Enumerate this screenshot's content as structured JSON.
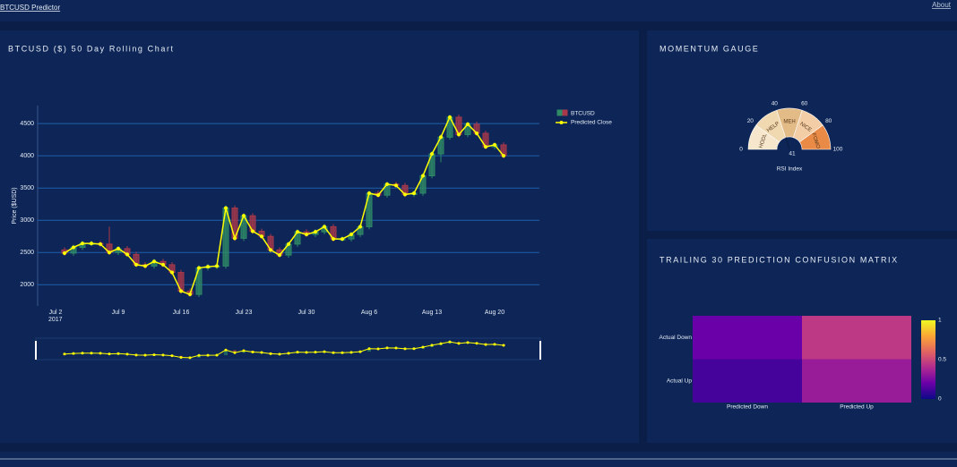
{
  "header": {
    "title": "BTCUSD Predictor",
    "link": "About"
  },
  "chart_data": [
    {
      "type": "candlestick",
      "title": "BTCUSD ($) 50 Day Rolling Chart",
      "name": "BTCUSD",
      "increasing_color": "#2f8a66",
      "decreasing_color": "#a8384a",
      "x": [
        "2017-07-03",
        "2017-07-04",
        "2017-07-05",
        "2017-07-06",
        "2017-07-07",
        "2017-07-08",
        "2017-07-09",
        "2017-07-10",
        "2017-07-11",
        "2017-07-12",
        "2017-07-13",
        "2017-07-14",
        "2017-07-15",
        "2017-07-16",
        "2017-07-17",
        "2017-07-18",
        "2017-07-19",
        "2017-07-20",
        "2017-07-21",
        "2017-07-22",
        "2017-07-23",
        "2017-07-24",
        "2017-07-25",
        "2017-07-26",
        "2017-07-27",
        "2017-07-28",
        "2017-07-29",
        "2017-07-30",
        "2017-07-31",
        "2017-08-01",
        "2017-08-02",
        "2017-08-03",
        "2017-08-04",
        "2017-08-05",
        "2017-08-06",
        "2017-08-07",
        "2017-08-08",
        "2017-08-09",
        "2017-08-10",
        "2017-08-11",
        "2017-08-12",
        "2017-08-13",
        "2017-08-14",
        "2017-08-15",
        "2017-08-16",
        "2017-08-17",
        "2017-08-18",
        "2017-08-19",
        "2017-08-20",
        "2017-08-21"
      ],
      "open": [
        2540,
        2490,
        2580,
        2640,
        2640,
        2630,
        2500,
        2560,
        2470,
        2310,
        2290,
        2360,
        2310,
        2190,
        1900,
        1850,
        2260,
        2280,
        2290,
        3190,
        2720,
        3070,
        2830,
        2750,
        2540,
        2460,
        2630,
        2820,
        2780,
        2820,
        2900,
        2710,
        2710,
        2780,
        2900,
        3420,
        3390,
        3560,
        3540,
        3400,
        3420,
        3690,
        4030,
        4290,
        4600,
        4330,
        4490,
        4350,
        4140,
        4170
      ],
      "high": [
        2580,
        2620,
        2680,
        2680,
        2680,
        2900,
        2600,
        2600,
        2510,
        2350,
        2400,
        2400,
        2350,
        2230,
        1940,
        2300,
        2320,
        2330,
        3230,
        3230,
        3110,
        3110,
        2870,
        2790,
        2580,
        2670,
        2860,
        2860,
        2860,
        2940,
        2940,
        2750,
        2820,
        2940,
        3460,
        3460,
        3600,
        3600,
        3580,
        3460,
        3730,
        4070,
        4330,
        4640,
        4640,
        4530,
        4530,
        4390,
        4210,
        4210
      ],
      "low": [
        2450,
        2450,
        2540,
        2600,
        2590,
        2460,
        2460,
        2430,
        2270,
        2250,
        2250,
        2270,
        2150,
        1860,
        1810,
        1810,
        2220,
        2240,
        2250,
        2680,
        2680,
        2790,
        2710,
        2500,
        2420,
        2420,
        2590,
        2740,
        2740,
        2780,
        2670,
        2670,
        2670,
        2740,
        2860,
        3350,
        3350,
        3500,
        3360,
        3360,
        3380,
        3650,
        3900,
        4250,
        4290,
        4290,
        4310,
        4100,
        4100,
        3960
      ],
      "close": [
        2490,
        2580,
        2640,
        2640,
        2630,
        2500,
        2560,
        2470,
        2310,
        2290,
        2360,
        2310,
        2190,
        1900,
        1850,
        2260,
        2280,
        2290,
        3190,
        2720,
        3070,
        2830,
        2750,
        2540,
        2460,
        2630,
        2820,
        2780,
        2820,
        2900,
        2710,
        2710,
        2780,
        2900,
        3420,
        3390,
        3560,
        3540,
        3400,
        3420,
        3690,
        4030,
        4290,
        4600,
        4330,
        4490,
        4350,
        4140,
        4170,
        4000
      ],
      "series": [
        {
          "name": "Predicted Close",
          "color": "#ffff00",
          "values": [
            2490,
            2580,
            2640,
            2640,
            2630,
            2500,
            2560,
            2470,
            2310,
            2290,
            2360,
            2310,
            2190,
            1900,
            1850,
            2260,
            2280,
            2290,
            3190,
            2720,
            3070,
            2830,
            2750,
            2540,
            2460,
            2630,
            2820,
            2780,
            2820,
            2900,
            2710,
            2710,
            2780,
            2900,
            3420,
            3390,
            3560,
            3540,
            3400,
            3420,
            3690,
            4030,
            4290,
            4600,
            4330,
            4490,
            4350,
            4140,
            4170,
            4000
          ]
        }
      ],
      "ylabel": "Price ($USD)",
      "xlim": [
        "2017-06-30",
        "2017-08-25"
      ],
      "ylim": [
        1670,
        4780
      ],
      "xticks": [
        {
          "value": "2017-07-02",
          "label": "Jul 2"
        },
        {
          "value": "2017-07-09",
          "label": "Jul 9"
        },
        {
          "value": "2017-07-16",
          "label": "Jul 16"
        },
        {
          "value": "2017-07-23",
          "label": "Jul 23"
        },
        {
          "value": "2017-07-30",
          "label": "Jul 30"
        },
        {
          "value": "2017-08-06",
          "label": "Aug 6"
        },
        {
          "value": "2017-08-13",
          "label": "Aug 13"
        },
        {
          "value": "2017-08-20",
          "label": "Aug 20"
        }
      ],
      "xtick_year": "2017",
      "yticks": [
        2000,
        2500,
        3000,
        3500,
        4000,
        4500
      ],
      "grid": true,
      "rangeslider": true
    },
    {
      "type": "gauge",
      "title": "MOMENTUM GAUGE",
      "value": 41,
      "range": [
        0,
        100
      ],
      "ticks": [
        0,
        20,
        40,
        60,
        80,
        100
      ],
      "axis_label": "RSI Index",
      "bands": [
        {
          "name": "HODL",
          "range": [
            0,
            20
          ],
          "color": "#f5e6cc"
        },
        {
          "name": "HELP",
          "range": [
            20,
            40
          ],
          "color": "#f0d8b0"
        },
        {
          "name": "MEH",
          "range": [
            40,
            60
          ],
          "color": "#e3bb87"
        },
        {
          "name": "NICE",
          "range": [
            60,
            80
          ],
          "color": "#f2cda6"
        },
        {
          "name": "FOMO",
          "range": [
            80,
            100
          ],
          "color": "#ea8a47"
        }
      ]
    },
    {
      "type": "heatmap",
      "title": "TRAILING 30 PREDICTION CONFUSION MATRIX",
      "x": [
        "Predicted Down",
        "Predicted Up"
      ],
      "y": [
        "Actual Down",
        "Actual Up"
      ],
      "z": [
        [
          0.2,
          0.45
        ],
        [
          0.12,
          0.33
        ]
      ],
      "zlim": [
        0,
        1
      ],
      "colorbar_ticks": [
        0,
        0.5,
        1
      ],
      "colorscale": [
        "#0d0887",
        "#6a00a8",
        "#b12a90",
        "#e16462",
        "#fca636",
        "#f0f921"
      ]
    }
  ]
}
